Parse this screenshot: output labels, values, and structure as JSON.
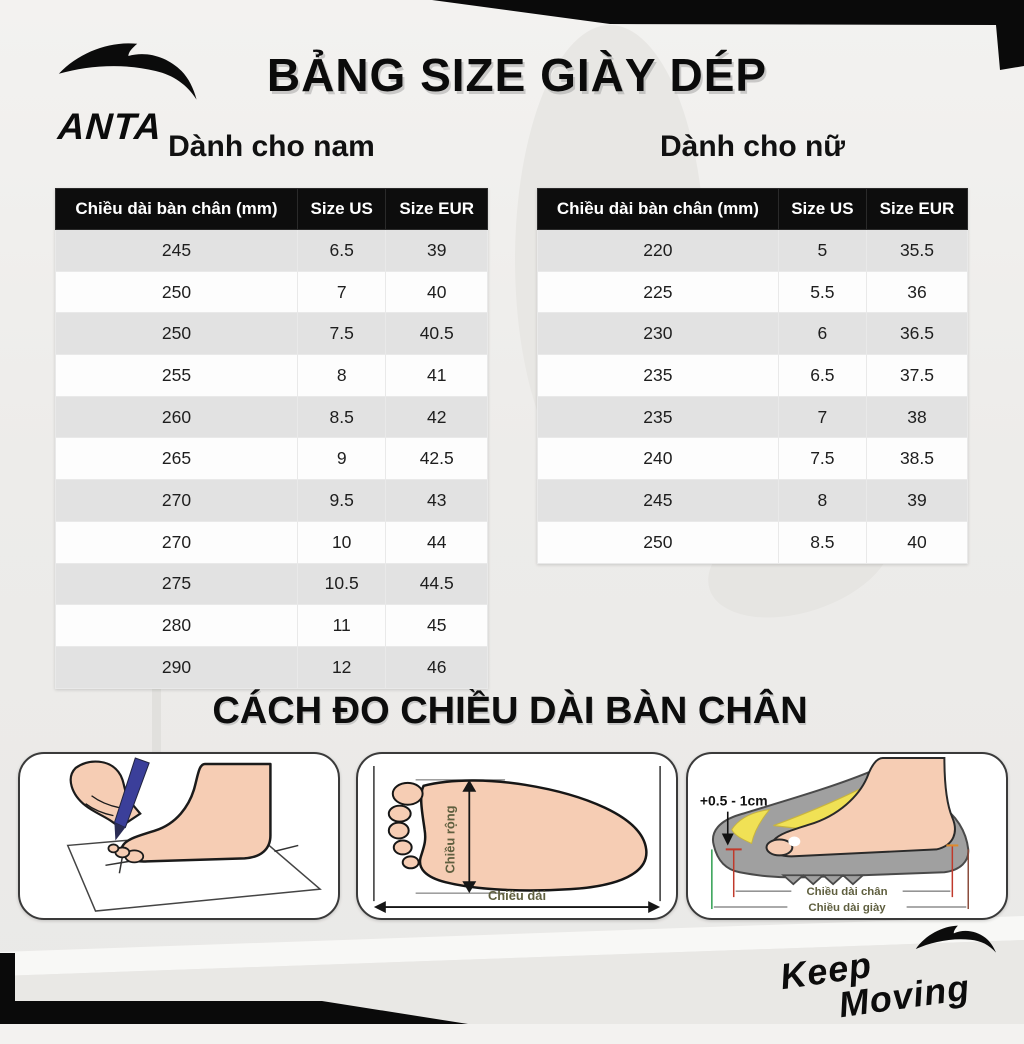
{
  "header": {
    "brand": "ANTA",
    "title": "BẢNG SIZE GIÀY DÉP"
  },
  "tables": {
    "men": {
      "heading": "Dành cho nam",
      "columns": [
        "Chiều dài bàn chân (mm)",
        "Size US",
        "Size EUR"
      ],
      "rows": [
        [
          "245",
          "6.5",
          "39"
        ],
        [
          "250",
          "7",
          "40"
        ],
        [
          "250",
          "7.5",
          "40.5"
        ],
        [
          "255",
          "8",
          "41"
        ],
        [
          "260",
          "8.5",
          "42"
        ],
        [
          "265",
          "9",
          "42.5"
        ],
        [
          "270",
          "9.5",
          "43"
        ],
        [
          "270",
          "10",
          "44"
        ],
        [
          "275",
          "10.5",
          "44.5"
        ],
        [
          "280",
          "11",
          "45"
        ],
        [
          "290",
          "12",
          "46"
        ]
      ]
    },
    "women": {
      "heading": "Dành cho nữ",
      "columns": [
        "Chiều dài bàn chân (mm)",
        "Size US",
        "Size EUR"
      ],
      "rows": [
        [
          "220",
          "5",
          "35.5"
        ],
        [
          "225",
          "5.5",
          "36"
        ],
        [
          "230",
          "6",
          "36.5"
        ],
        [
          "235",
          "6.5",
          "37.5"
        ],
        [
          "235",
          "7",
          "38"
        ],
        [
          "240",
          "7.5",
          "38.5"
        ],
        [
          "245",
          "8",
          "39"
        ],
        [
          "250",
          "8.5",
          "40"
        ]
      ]
    }
  },
  "measure_section": {
    "title": "CÁCH ĐO CHIỀU DÀI BÀN CHÂN",
    "foot_diagram": {
      "width_label": "Chiều rộng",
      "length_label": "Chiều dài"
    },
    "shoe_diagram": {
      "allowance_label": "+0.5 - 1cm",
      "foot_length_label": "Chiều dài chân",
      "shoe_length_label": "Chiều dài giày"
    }
  },
  "footer": {
    "slogan_line1": "Keep",
    "slogan_line2": "Moving"
  },
  "colors": {
    "black": "#0c0c0c",
    "row_gray": "#e2e2e2",
    "skin": "#f6cdb4",
    "pen_blue": "#3b3f9a",
    "insole_yellow": "#f0e155",
    "shoe_gray": "#a0a0a0",
    "label_olive": "#5f5f3f",
    "measure_red": "#c0392b",
    "measure_green": "#2e9e4f"
  }
}
